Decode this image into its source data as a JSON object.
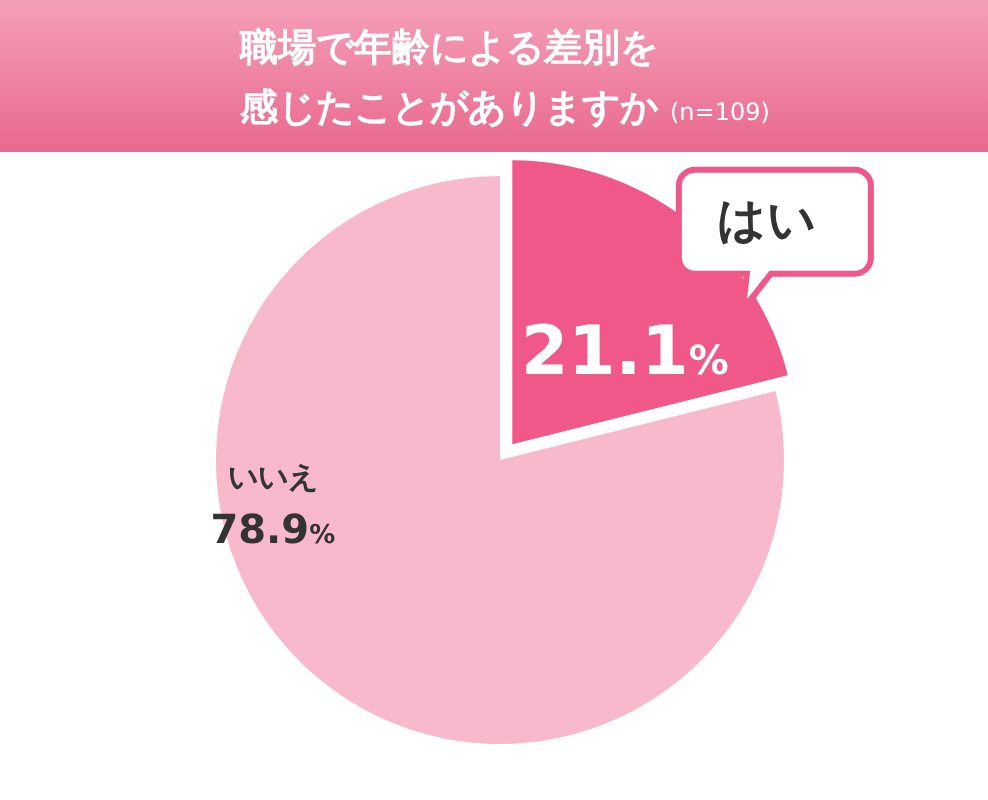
{
  "chart_data": {
    "type": "pie",
    "title": "職場で年齢による差別を感じたことがありますか",
    "subtitle": "(n=109)",
    "categories": [
      "はい",
      "いいえ"
    ],
    "values": [
      21.1,
      78.9
    ],
    "colors": [
      "#f0588a",
      "#f9b9cd"
    ],
    "value_labels": [
      "21.1%",
      "78.9%"
    ]
  }
}
